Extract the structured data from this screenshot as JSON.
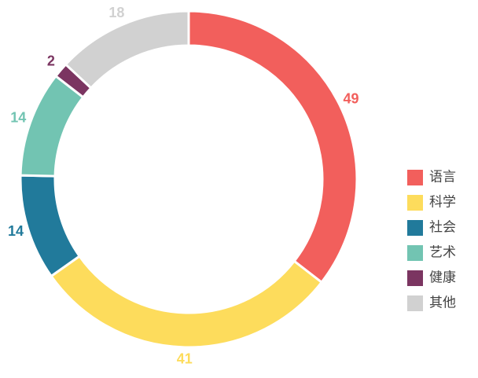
{
  "chart_data": {
    "type": "pie",
    "categories": [
      "语言",
      "科学",
      "社会",
      "艺术",
      "健康",
      "其他"
    ],
    "values": [
      49,
      41,
      14,
      14,
      2,
      18
    ],
    "colors": [
      "#f25f5c",
      "#fddc5c",
      "#217a9b",
      "#72c4b2",
      "#7b3561",
      "#d1d1d1"
    ],
    "legend": "right"
  }
}
